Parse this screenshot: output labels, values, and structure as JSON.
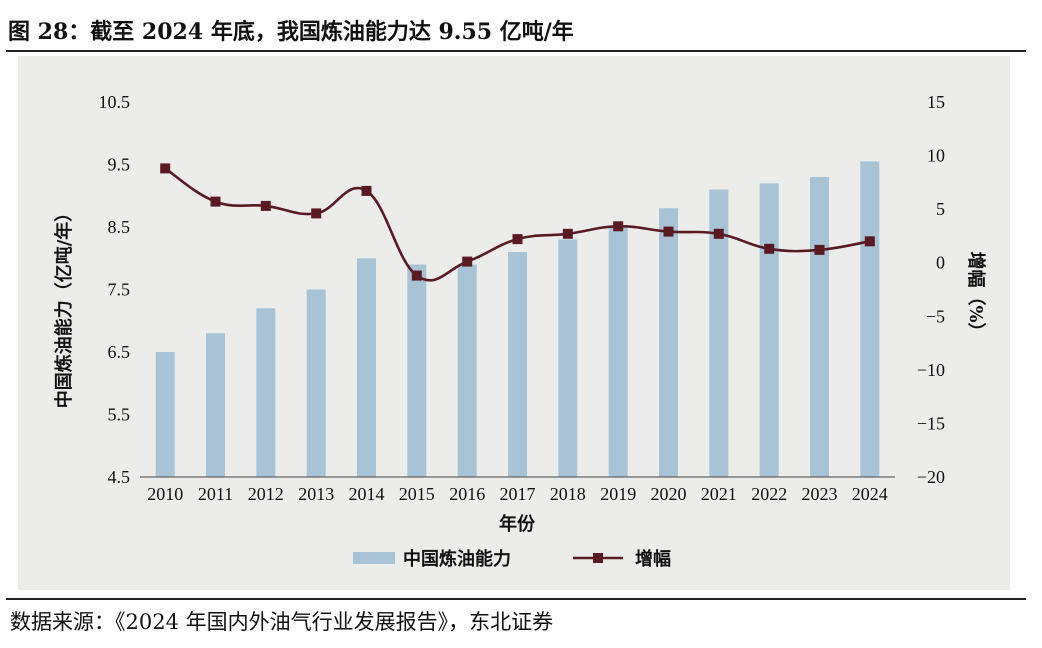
{
  "figure_title": "图 28：截至 2024 年底，我国炼油能力达 9.55 亿吨/年",
  "source_note": "数据来源：《2024 年国内外油气行业发展报告》，东北证券",
  "colors": {
    "bar": "#a9c3d6",
    "line": "#5a1a24",
    "background": "#ececea"
  },
  "chart_data": {
    "type": "bar",
    "title": "",
    "xlabel": "年份",
    "ylabel_left": "中国炼油能力（亿吨/年）",
    "ylabel_right": "增幅（%）",
    "categories": [
      "2010",
      "2011",
      "2012",
      "2013",
      "2014",
      "2015",
      "2016",
      "2017",
      "2018",
      "2019",
      "2020",
      "2021",
      "2022",
      "2023",
      "2024"
    ],
    "series": [
      {
        "name": "中国炼油能力",
        "type": "bar",
        "axis": "left",
        "values": [
          6.5,
          6.8,
          7.2,
          7.5,
          8.0,
          7.9,
          7.9,
          8.1,
          8.3,
          8.5,
          8.8,
          9.1,
          9.2,
          9.3,
          9.55
        ]
      },
      {
        "name": "增幅",
        "type": "line",
        "axis": "right",
        "marker": "square",
        "values": [
          8.8,
          5.7,
          5.3,
          4.6,
          6.7,
          -1.2,
          0.1,
          2.2,
          2.7,
          3.4,
          2.9,
          2.7,
          1.3,
          1.2,
          2.0
        ]
      }
    ],
    "ylim_left": [
      4.5,
      10.5
    ],
    "yticks_left": [
      "4.5",
      "5.5",
      "6.5",
      "7.5",
      "8.5",
      "9.5",
      "10.5"
    ],
    "ylim_right": [
      -20,
      15
    ],
    "yticks_right": [
      "-20",
      "-15",
      "-10",
      "-5",
      "0",
      "5",
      "10",
      "15"
    ],
    "grid": false,
    "legend": "bottom-center"
  }
}
